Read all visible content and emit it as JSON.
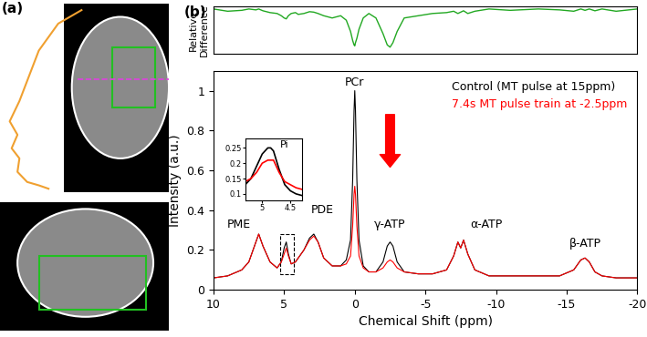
{
  "panel_labels": [
    "(a)",
    "(b)"
  ],
  "chart_data": [
    {
      "type": "line",
      "y_label": "Relative\nDifference",
      "x": [
        10,
        9,
        8,
        7.5,
        7,
        6.8,
        6.5,
        6,
        5.5,
        5.2,
        5.0,
        4.85,
        4.7,
        4.5,
        4.2,
        4.0,
        3.6,
        3.2,
        2.9,
        2.6,
        2.2,
        1.6,
        1.0,
        0.6,
        0.3,
        0.15,
        0.05,
        0,
        -0.05,
        -0.15,
        -0.3,
        -0.6,
        -1.0,
        -1.5,
        -2.0,
        -2.3,
        -2.5,
        -2.7,
        -3.0,
        -3.5,
        -4.5,
        -5.5,
        -6.5,
        -7.0,
        -7.3,
        -7.5,
        -7.7,
        -8.0,
        -8.5,
        -9.5,
        -11,
        -13,
        -14.5,
        -15.5,
        -16.0,
        -16.3,
        -16.6,
        -17.0,
        -17.5,
        -18.5,
        -20
      ],
      "series": [
        {
          "color": "#22a822",
          "values": [
            1,
            0.95,
            0.97,
            1,
            0.98,
            1,
            0.96,
            0.92,
            0.9,
            0.85,
            0.8,
            0.78,
            0.85,
            0.9,
            0.92,
            0.88,
            0.9,
            0.94,
            0.93,
            0.9,
            0.85,
            0.8,
            0.85,
            0.75,
            0.5,
            0.3,
            0.2,
            0.18,
            0.25,
            0.35,
            0.55,
            0.8,
            0.9,
            0.8,
            0.45,
            0.2,
            0.15,
            0.25,
            0.5,
            0.8,
            0.85,
            0.9,
            0.92,
            0.95,
            0.9,
            0.93,
            0.96,
            0.9,
            0.95,
            1,
            0.97,
            1,
            0.98,
            0.95,
            1,
            0.97,
            1,
            0.96,
            1,
            0.95,
            1
          ]
        }
      ],
      "xlim": [
        10,
        -20
      ],
      "ylim": [
        0,
        1.05
      ],
      "tick_labels": false
    },
    {
      "type": "line",
      "x_label": "Chemical Shift (ppm)",
      "y_label": "Intensity (a.u.)",
      "x": [
        10,
        9,
        8,
        7.5,
        7,
        6.8,
        6.5,
        6,
        5.5,
        5.2,
        5.0,
        4.85,
        4.7,
        4.5,
        4.2,
        4.0,
        3.6,
        3.2,
        2.9,
        2.6,
        2.2,
        1.6,
        1.0,
        0.6,
        0.3,
        0.15,
        0.05,
        0,
        -0.05,
        -0.15,
        -0.3,
        -0.6,
        -1.0,
        -1.5,
        -2.0,
        -2.3,
        -2.5,
        -2.7,
        -3.0,
        -3.5,
        -4.5,
        -5.5,
        -6.5,
        -7.0,
        -7.3,
        -7.5,
        -7.7,
        -8.0,
        -8.5,
        -9.5,
        -11,
        -13,
        -14.5,
        -15.5,
        -16.0,
        -16.3,
        -16.6,
        -17.0,
        -17.5,
        -18.5,
        -20
      ],
      "series": [
        {
          "name": "Control (MT pulse at 15ppm)",
          "color": "#000000",
          "values": [
            0.06,
            0.07,
            0.1,
            0.14,
            0.24,
            0.28,
            0.22,
            0.14,
            0.11,
            0.14,
            0.21,
            0.24,
            0.18,
            0.13,
            0.14,
            0.16,
            0.2,
            0.26,
            0.28,
            0.24,
            0.16,
            0.12,
            0.12,
            0.15,
            0.25,
            0.55,
            0.9,
            1.0,
            0.9,
            0.55,
            0.25,
            0.12,
            0.09,
            0.09,
            0.14,
            0.22,
            0.24,
            0.22,
            0.14,
            0.09,
            0.08,
            0.08,
            0.1,
            0.17,
            0.24,
            0.21,
            0.25,
            0.18,
            0.1,
            0.07,
            0.07,
            0.07,
            0.07,
            0.1,
            0.15,
            0.16,
            0.14,
            0.09,
            0.07,
            0.06,
            0.06
          ]
        },
        {
          "name": "7.4s MT pulse train at -2.5ppm",
          "color": "#ff0000",
          "values": [
            0.06,
            0.07,
            0.1,
            0.14,
            0.24,
            0.28,
            0.22,
            0.14,
            0.11,
            0.14,
            0.18,
            0.21,
            0.17,
            0.13,
            0.14,
            0.16,
            0.2,
            0.25,
            0.27,
            0.24,
            0.16,
            0.12,
            0.12,
            0.13,
            0.17,
            0.32,
            0.48,
            0.52,
            0.48,
            0.32,
            0.17,
            0.11,
            0.09,
            0.09,
            0.11,
            0.14,
            0.15,
            0.14,
            0.11,
            0.09,
            0.08,
            0.08,
            0.1,
            0.17,
            0.24,
            0.21,
            0.25,
            0.18,
            0.1,
            0.07,
            0.07,
            0.07,
            0.07,
            0.1,
            0.15,
            0.16,
            0.14,
            0.09,
            0.07,
            0.06,
            0.06
          ]
        }
      ],
      "xlim": [
        10,
        -20
      ],
      "ylim": [
        0,
        1.1
      ],
      "xticks": [
        10,
        5,
        0,
        -5,
        -10,
        -15,
        -20
      ],
      "yticks": [
        0,
        0.2,
        0.4,
        0.6,
        0.8,
        1
      ],
      "legend": "upper right",
      "annotations": [
        {
          "text": "PME",
          "x": 8.2,
          "y": 0.3
        },
        {
          "text": "PDE",
          "x": 2.3,
          "y": 0.37
        },
        {
          "text": "PCr",
          "x": 0,
          "y": 1.01
        },
        {
          "text": "γ-ATP",
          "x": -2.5,
          "y": 0.3
        },
        {
          "text": "α-ATP",
          "x": -9.3,
          "y": 0.3
        },
        {
          "text": "β-ATP",
          "x": -16.3,
          "y": 0.2
        }
      ]
    },
    {
      "type": "line",
      "x": [
        5.3,
        5.2,
        5.1,
        5.0,
        4.9,
        4.85,
        4.8,
        4.7,
        4.6,
        4.5,
        4.4,
        4.3
      ],
      "series": [
        {
          "color": "#000000",
          "values": [
            0.13,
            0.15,
            0.19,
            0.23,
            0.25,
            0.25,
            0.24,
            0.18,
            0.13,
            0.11,
            0.1,
            0.095
          ]
        },
        {
          "color": "#ff0000",
          "values": [
            0.14,
            0.15,
            0.17,
            0.2,
            0.21,
            0.21,
            0.21,
            0.17,
            0.14,
            0.13,
            0.12,
            0.115
          ]
        }
      ],
      "xlim": [
        5.3,
        4.3
      ],
      "ylim": [
        0.08,
        0.28
      ],
      "xticks": [
        5,
        4.5
      ],
      "yticks": [
        0.1,
        0.15,
        0.2,
        0.25
      ],
      "annotations": [
        {
          "text": "Pi",
          "x": 4.6,
          "y": 0.245
        }
      ]
    }
  ]
}
